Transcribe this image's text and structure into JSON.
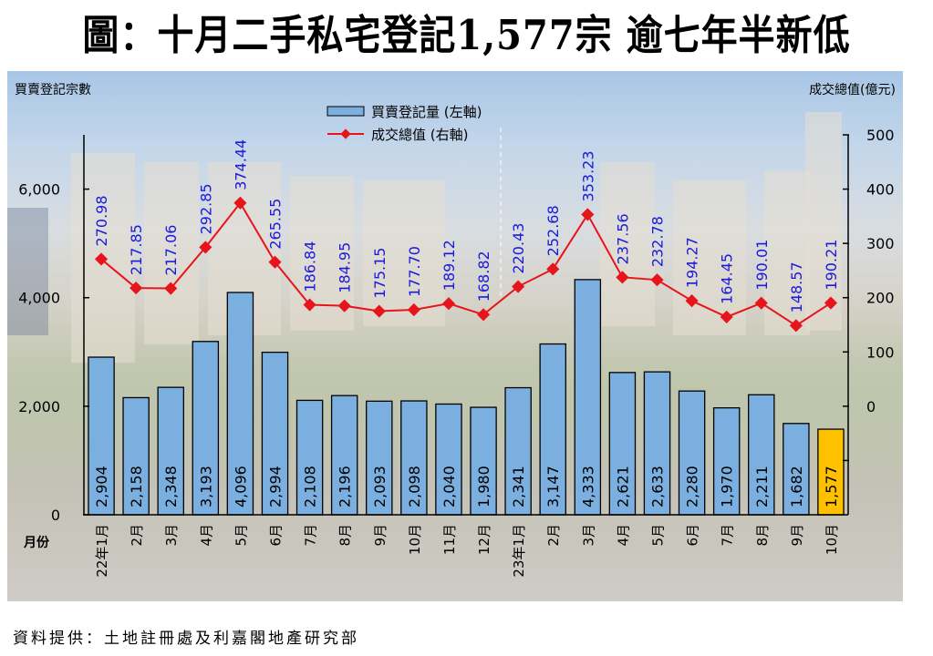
{
  "title": "圖：十月二手私宅登記1,577宗  逾七年半新低",
  "source": "資料提供：土地註冊處及利嘉閣地產研究部",
  "colors": {
    "bar": "#7aafe0",
    "bar_highlight": "#ffc000",
    "line": "#e8141b",
    "line_label": "#1a1adc",
    "axis": "#000000"
  },
  "chart_data": {
    "type": "bar",
    "combo": "bar+line",
    "title": "圖：十月二手私宅登記1,577宗  逾七年半新低",
    "xlabel": "月份",
    "ylabel_left": "買賣登記宗數",
    "ylabel_right": "成交總值(億元)",
    "categories": [
      "22年1月",
      "2月",
      "3月",
      "4月",
      "5月",
      "6月",
      "7月",
      "8月",
      "9月",
      "10月",
      "11月",
      "12月",
      "23年1月",
      "2月",
      "3月",
      "4月",
      "5月",
      "6月",
      "7月",
      "8月",
      "9月",
      "10月"
    ],
    "series": [
      {
        "name": "買賣登記量 (左軸)",
        "type": "bar",
        "axis": "left",
        "values": [
          2904,
          2158,
          2348,
          3193,
          4096,
          2994,
          2108,
          2196,
          2093,
          2098,
          2040,
          1980,
          2341,
          3147,
          4333,
          2621,
          2633,
          2280,
          1970,
          2211,
          1682,
          1577
        ],
        "labels": [
          "2,904",
          "2,158",
          "2,348",
          "3,193",
          "4,096",
          "2,994",
          "2,108",
          "2,196",
          "2,093",
          "2,098",
          "2,040",
          "1,980",
          "2,341",
          "3,147",
          "4,333",
          "2,621",
          "2,633",
          "2,280",
          "1,970",
          "2,211",
          "1,682",
          "1,577"
        ],
        "highlight_index": 21
      },
      {
        "name": "成交總值 (右軸)",
        "type": "line",
        "axis": "right",
        "marker": "diamond",
        "values": [
          270.98,
          217.85,
          217.06,
          292.85,
          374.44,
          265.55,
          186.84,
          184.95,
          175.15,
          177.7,
          189.12,
          168.82,
          220.43,
          252.68,
          353.23,
          237.56,
          232.78,
          194.27,
          164.45,
          190.01,
          148.57,
          190.21
        ],
        "labels": [
          "270.98",
          "217.85",
          "217.06",
          "292.85",
          "374.44",
          "265.55",
          "186.84",
          "184.95",
          "175.15",
          "177.70",
          "189.12",
          "168.82",
          "220.43",
          "252.68",
          "353.23",
          "237.56",
          "232.78",
          "194.27",
          "164.45",
          "190.01",
          "148.57",
          "190.21"
        ]
      }
    ],
    "left_axis": {
      "range": [
        0,
        7000
      ],
      "ticks": [
        0,
        2000,
        4000,
        6000
      ],
      "tick_labels": [
        "0",
        "2,000",
        "4,000",
        "6,000"
      ]
    },
    "right_axis": {
      "range": [
        -200,
        500
      ],
      "ticks": [
        -100,
        0,
        100,
        200,
        300,
        400,
        500
      ],
      "tick_labels": [
        "",
        "0",
        "100",
        "200",
        "300",
        "400",
        "500"
      ]
    },
    "year_divider_after_index": 11,
    "grid": false,
    "legend": {
      "position": "top-center",
      "items": [
        "買賣登記量 (左軸)",
        "成交總值 (右軸)"
      ]
    }
  }
}
